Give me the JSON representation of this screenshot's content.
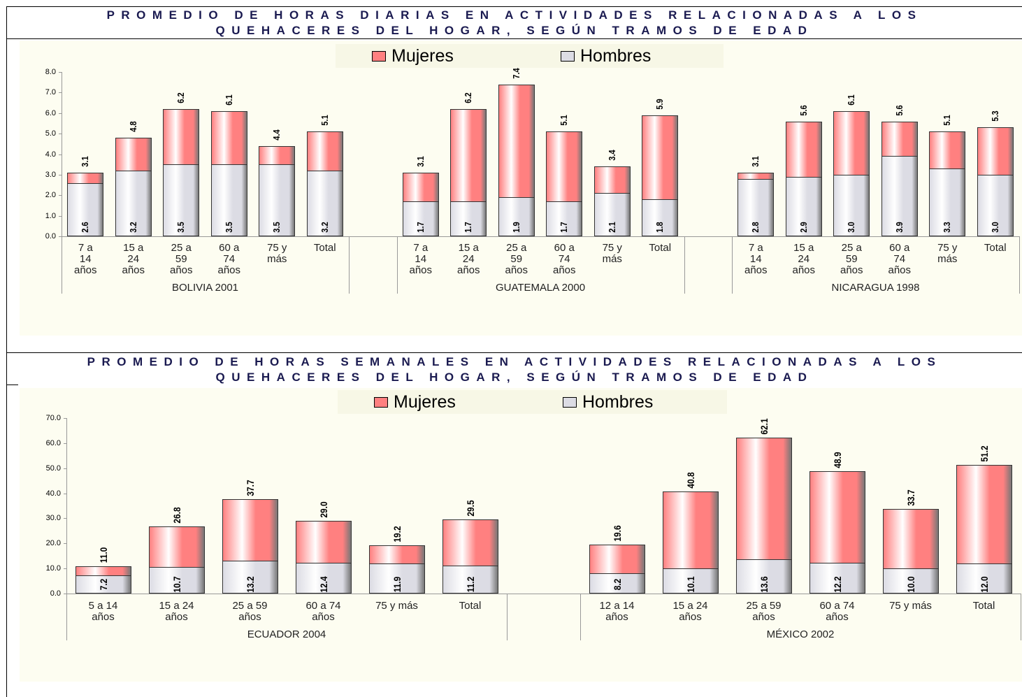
{
  "chart_data": [
    {
      "type": "bar",
      "title": "PROMEDIO DE HORAS DIARIAS EN ACTIVIDADES RELACIONADAS A LOS\nQUEHACERES DEL HOGAR, SEGÚN TRAMOS DE EDAD",
      "groups": [
        {
          "name": "BOLIVIA 2001",
          "categories": [
            "7 a\n14\naños",
            "15 a\n24\naños",
            "25 a\n59\naños",
            "60 a\n74\naños",
            "75 y\nmás",
            "Total"
          ]
        },
        {
          "name": "GUATEMALA 2000",
          "categories": [
            "7 a\n14\naños",
            "15 a\n24\naños",
            "25 a\n59\naños",
            "60 a\n74\naños",
            "75 y\nmás",
            "Total"
          ]
        },
        {
          "name": "NICARAGUA 1998",
          "categories": [
            "7 a\n14\naños",
            "15 a\n24\naños",
            "25 a\n59\naños",
            "60 a\n74\naños",
            "75 y\nmás",
            "Total"
          ]
        }
      ],
      "series": [
        {
          "name": "Mujeres",
          "color": "#ff8080",
          "values": [
            3.1,
            4.8,
            6.2,
            6.1,
            4.4,
            5.1,
            3.1,
            6.2,
            7.4,
            5.1,
            3.4,
            5.9,
            3.1,
            5.6,
            6.1,
            5.6,
            5.1,
            5.3
          ],
          "value_labels": [
            "3.1",
            "4.8",
            "6.2",
            "6.1",
            "4.4",
            "5.1",
            "3.1",
            "6.2",
            "7.4",
            "5.1",
            "3.4",
            "5.9",
            "3.1",
            "5.6",
            "6.1",
            "5.6",
            "5.1",
            "5.3"
          ]
        },
        {
          "name": "Hombres",
          "color": "#dcdce4",
          "values": [
            2.6,
            3.2,
            3.5,
            3.5,
            3.5,
            3.2,
            1.7,
            1.7,
            1.9,
            1.7,
            2.1,
            1.8,
            2.8,
            2.9,
            3.0,
            3.9,
            3.3,
            3.0
          ],
          "value_labels": [
            "2.6",
            "3.2",
            "3.5",
            "3.5",
            "3.5",
            "3.2",
            "1.7",
            "1.7",
            "1.9",
            "1.7",
            "2.1",
            "1.8",
            "2.8",
            "2.9",
            "3.0",
            "3.9",
            "3.3",
            "3.0"
          ]
        }
      ],
      "ylim": [
        0,
        8
      ],
      "yticks": [
        {
          "value": 0,
          "label": "0.0"
        },
        {
          "value": 1,
          "label": "1.0"
        },
        {
          "value": 2,
          "label": "2.0"
        },
        {
          "value": 3,
          "label": "3.0"
        },
        {
          "value": 4,
          "label": "4.0"
        },
        {
          "value": 5,
          "label": "5.0"
        },
        {
          "value": 6,
          "label": "6.0"
        },
        {
          "value": 7,
          "label": "7.0"
        },
        {
          "value": 8,
          "label": "8.0"
        }
      ],
      "legend": "top"
    },
    {
      "type": "bar",
      "title": "PROMEDIO DE HORAS SEMANALES EN ACTIVIDADES RELACIONADAS A LOS\nQUEHACERES DEL HOGAR, SEGÚN TRAMOS DE EDAD",
      "groups": [
        {
          "name": "ECUADOR 2004",
          "categories": [
            "5 a 14\naños",
            "15 a 24\naños",
            "25 a 59\naños",
            "60 a 74\naños",
            "75 y más",
            "Total"
          ]
        },
        {
          "name": "MÉXICO 2002",
          "categories": [
            "12 a 14\naños",
            "15 a 24\naños",
            "25 a 59\naños",
            "60 a 74\naños",
            "75 y más",
            "Total"
          ]
        }
      ],
      "series": [
        {
          "name": "Mujeres",
          "color": "#ff8080",
          "values": [
            11.0,
            26.8,
            37.7,
            29.0,
            19.2,
            29.5,
            19.6,
            40.8,
            62.1,
            48.9,
            33.7,
            51.2
          ],
          "value_labels": [
            "11.0",
            "26.8",
            "37.7",
            "29.0",
            "19.2",
            "29.5",
            "19.6",
            "40.8",
            "62.1",
            "48.9",
            "33.7",
            "51.2"
          ]
        },
        {
          "name": "Hombres",
          "color": "#dcdce4",
          "values": [
            7.2,
            10.7,
            13.2,
            12.4,
            11.9,
            11.2,
            8.2,
            10.1,
            13.6,
            12.2,
            10.0,
            12.0
          ],
          "value_labels": [
            "7.2",
            "10.7",
            "13.2",
            "12.4",
            "11.9",
            "11.2",
            "8.2",
            "10.1",
            "13.6",
            "12.2",
            "10.0",
            "12.0"
          ]
        }
      ],
      "ylim": [
        0,
        70
      ],
      "yticks": [
        {
          "value": 0,
          "label": "0.0"
        },
        {
          "value": 10,
          "label": "10.0"
        },
        {
          "value": 20,
          "label": "20.0"
        },
        {
          "value": 30,
          "label": "30.0"
        },
        {
          "value": 40,
          "label": "40.0"
        },
        {
          "value": 50,
          "label": "50.0"
        },
        {
          "value": 60,
          "label": "60.0"
        },
        {
          "value": 70,
          "label": "70.0"
        }
      ],
      "legend": "top"
    }
  ]
}
